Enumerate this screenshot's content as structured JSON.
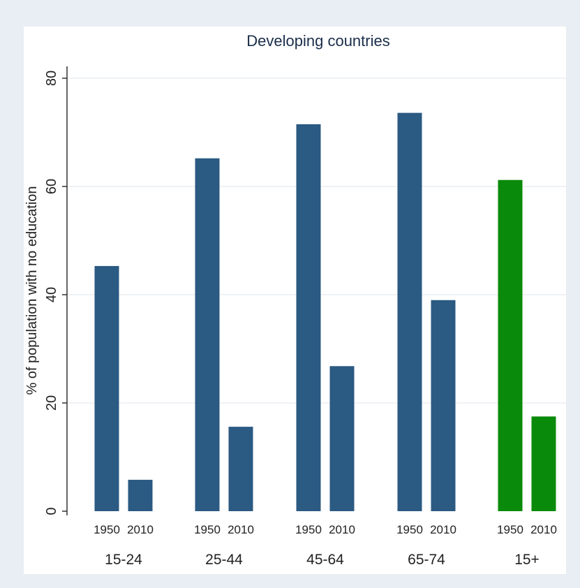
{
  "chart_data": {
    "type": "bar",
    "title": "Developing countries",
    "ylabel": "% of population with no education",
    "xlabel": "",
    "ylim": [
      0,
      80
    ],
    "yticks": [
      0,
      20,
      40,
      60,
      80
    ],
    "grid": true,
    "groups": [
      {
        "label": "15-24",
        "bars": [
          {
            "year": "1950",
            "value": 45.3
          },
          {
            "year": "2010",
            "value": 5.8
          }
        ],
        "color": "#2b5a82"
      },
      {
        "label": "25-44",
        "bars": [
          {
            "year": "1950",
            "value": 65.2
          },
          {
            "year": "2010",
            "value": 15.6
          }
        ],
        "color": "#2b5a82"
      },
      {
        "label": "45-64",
        "bars": [
          {
            "year": "1950",
            "value": 71.5
          },
          {
            "year": "2010",
            "value": 26.8
          }
        ],
        "color": "#2b5a82"
      },
      {
        "label": "65-74",
        "bars": [
          {
            "year": "1950",
            "value": 73.6
          },
          {
            "year": "2010",
            "value": 39.0
          }
        ],
        "color": "#2b5a82"
      },
      {
        "label": "15+",
        "bars": [
          {
            "year": "1950",
            "value": 61.2
          },
          {
            "year": "2010",
            "value": 17.5
          }
        ],
        "color": "#0a8a0a"
      }
    ]
  }
}
